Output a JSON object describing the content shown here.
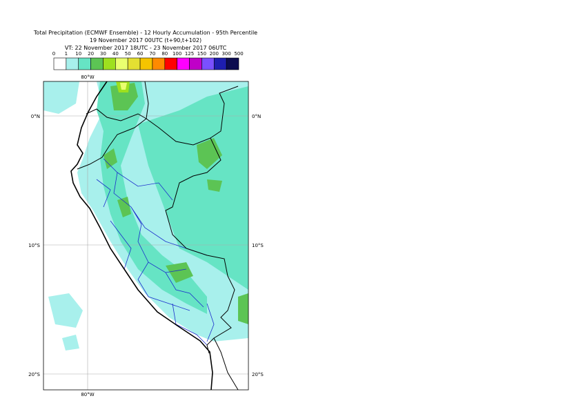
{
  "header": {
    "title": "Total Precipitation (ECMWF Ensemble) - 12 Hourly Accumulation - 95th Percentile",
    "base_time": "19 November 2017 00UTC (t+90,t+102)",
    "valid_time": "VT: 22 November 2017 18UTC - 23 November 2017 06UTC"
  },
  "legend": {
    "labels": [
      0,
      1,
      10,
      20,
      30,
      40,
      50,
      60,
      70,
      80,
      100,
      125,
      150,
      200,
      300,
      500
    ],
    "colors": [
      "#ffffff",
      "#a8f0ec",
      "#66e4c4",
      "#5cc454",
      "#9ee01e",
      "#eaff70",
      "#e4e032",
      "#f5c400",
      "#ff8a00",
      "#ff0000",
      "#ff00ff",
      "#c000c8",
      "#7a50ff",
      "#1e1eb0",
      "#0c0c50"
    ]
  },
  "map": {
    "lon_labels": [
      "80°W"
    ],
    "lat_labels": [
      "0°N",
      "10°S",
      "20°S"
    ]
  }
}
